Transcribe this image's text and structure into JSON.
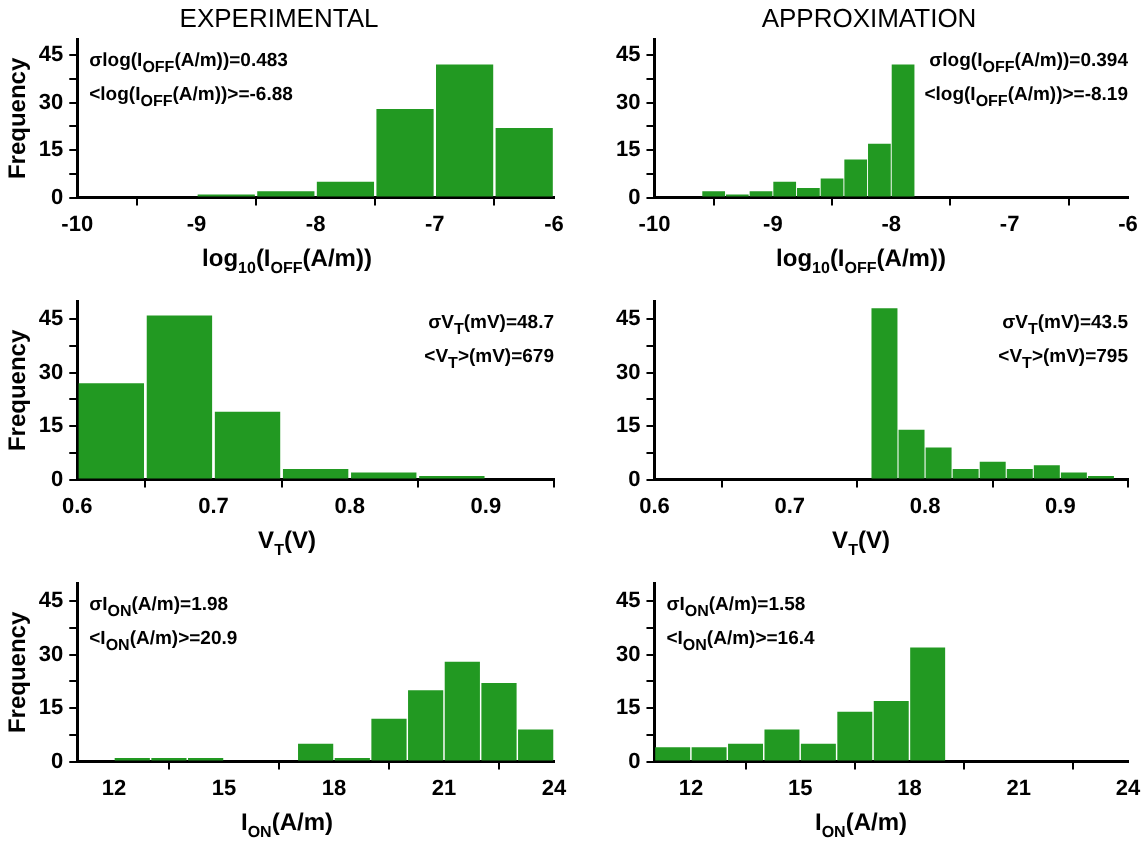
{
  "chart_data": [
    {
      "type": "histogram",
      "title": "EXPERIMENTAL",
      "xlabel": "log$_{10}$(I$_{OFF}$(A/m))",
      "ylabel": "Frequency",
      "bins": [
        -9,
        -8.5,
        -8,
        -7.5,
        -7,
        -6.5,
        -6
      ],
      "values": [
        1,
        2,
        5,
        28,
        42,
        22
      ],
      "color": "#229922",
      "xlim": [
        -10,
        -6
      ],
      "xticks": [
        -10,
        -9,
        -8,
        -7,
        -6
      ],
      "ylim": [
        0,
        50
      ],
      "yticks": [
        0,
        {
          "value": 7.5,
          "label": null
        },
        15,
        {
          "value": 22.5,
          "label": null
        },
        30,
        {
          "value": 37.5,
          "label": null
        },
        45
      ],
      "annotations": [
        "σlog(I$_{OFF}$(A/m))=0.483",
        "<log(I$_{OFF}$(A/m))>=-6.88"
      ]
    },
    {
      "type": "histogram",
      "title": "APPROXIMATION",
      "xlabel": "log$_{10}$(I$_{OFF}$(A/m))",
      "bins": [
        -9.6,
        -9.4,
        -9.2,
        -9,
        -8.8,
        -8.6,
        -8.4,
        -8.2,
        -8,
        -7.8
      ],
      "values": [
        2,
        1,
        2,
        5,
        3,
        6,
        12,
        17,
        42
      ],
      "color": "#229922",
      "xlim": [
        -10,
        -6
      ],
      "xticks": [
        -10,
        -9,
        -8,
        -7,
        -6
      ],
      "ylim": [
        0,
        50
      ],
      "yticks": [
        0,
        {
          "value": 7.5,
          "label": null
        },
        15,
        {
          "value": 22.5,
          "label": null
        },
        30,
        {
          "value": 37.5,
          "label": null
        },
        45
      ],
      "annotations": [
        "σlog(I$_{OFF}$(A/m))=0.394",
        "<log(I$_{OFF}$(A/m))>=-8.19"
      ]
    },
    {
      "type": "histogram",
      "xlabel": "V$_{T}$(V)",
      "ylabel": "Frequency",
      "bins": [
        0.6,
        0.65,
        0.7,
        0.75,
        0.8,
        0.85,
        0.9
      ],
      "values": [
        27,
        46,
        19,
        3,
        2,
        1
      ],
      "color": "#229922",
      "xlim": [
        0.6,
        0.95
      ],
      "xticks": [
        0.6,
        0.7,
        0.8,
        0.9
      ],
      "ylim": [
        0,
        50
      ],
      "yticks": [
        0,
        {
          "value": 7.5,
          "label": null
        },
        15,
        {
          "value": 22.5,
          "label": null
        },
        30,
        {
          "value": 37.5,
          "label": null
        },
        45
      ],
      "annotations": [
        "σV$_{T}$(mV)=48.7",
        "<V$_{T}$>(mV)=679"
      ]
    },
    {
      "type": "histogram",
      "xlabel": "V$_{T}$(V)",
      "bins": [
        0.76,
        0.78,
        0.8,
        0.82,
        0.84,
        0.86,
        0.88,
        0.9,
        0.92,
        0.94
      ],
      "values": [
        48,
        14,
        9,
        3,
        5,
        3,
        4,
        2,
        1
      ],
      "color": "#229922",
      "xlim": [
        0.6,
        0.95
      ],
      "xticks": [
        0.6,
        0.7,
        0.8,
        0.9
      ],
      "ylim": [
        0,
        50
      ],
      "yticks": [
        0,
        {
          "value": 7.5,
          "label": null
        },
        15,
        {
          "value": 22.5,
          "label": null
        },
        30,
        {
          "value": 37.5,
          "label": null
        },
        45
      ],
      "annotations": [
        "σV$_{T}$(mV)=43.5",
        "<V$_{T}$>(mV)=795"
      ]
    },
    {
      "type": "histogram",
      "xlabel": "I$_{ON}$(A/m)",
      "ylabel": "Frequency",
      "bins": [
        12,
        13,
        14,
        15,
        16,
        17,
        18,
        19,
        20,
        21,
        22,
        23,
        24
      ],
      "values": [
        1,
        1,
        1,
        0,
        0,
        5,
        1,
        12,
        20,
        28,
        22,
        9
      ],
      "color": "#229922",
      "xlim": [
        11,
        24
      ],
      "xticks": [
        12,
        15,
        18,
        21,
        24
      ],
      "ylim": [
        0,
        50
      ],
      "yticks": [
        0,
        {
          "value": 7.5,
          "label": null
        },
        15,
        {
          "value": 22.5,
          "label": null
        },
        30,
        {
          "value": 37.5,
          "label": null
        },
        45
      ],
      "annotations": [
        "σI$_{ON}$(A/m)=1.98",
        "<I$_{ON}$(A/m)>=20.9"
      ]
    },
    {
      "type": "histogram",
      "xlabel": "I$_{ON}$(A/m)",
      "bins": [
        11,
        12,
        13,
        14,
        15,
        16,
        17,
        18,
        19
      ],
      "values": [
        4,
        4,
        5,
        9,
        5,
        14,
        17,
        32
      ],
      "color": "#229922",
      "xlim": [
        11,
        24
      ],
      "xticks": [
        12,
        15,
        18,
        21,
        24
      ],
      "ylim": [
        0,
        50
      ],
      "yticks": [
        0,
        {
          "value": 7.5,
          "label": null
        },
        15,
        {
          "value": 22.5,
          "label": null
        },
        30,
        {
          "value": 37.5,
          "label": null
        },
        45
      ],
      "annotations": [
        "σI$_{ON}$(A/m)=1.58",
        "<I$_{ON}$(A/m)>=16.4"
      ]
    }
  ]
}
